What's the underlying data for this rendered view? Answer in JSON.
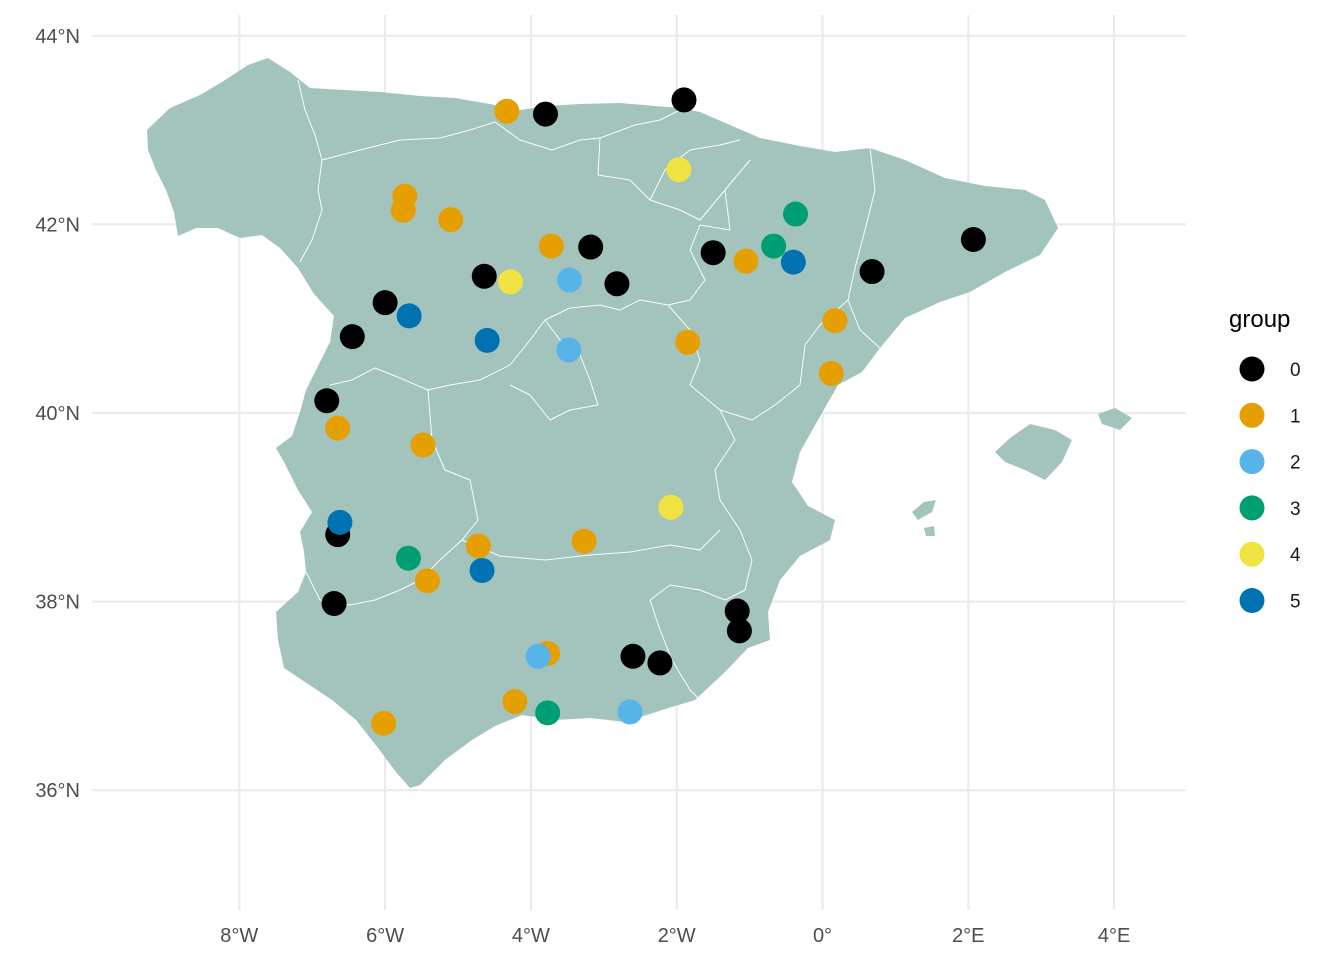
{
  "chart_data": {
    "type": "scatter",
    "title": "",
    "xlabel": "",
    "ylabel": "",
    "xlim": [
      -9.5,
      5
    ],
    "ylim": [
      35,
      44.2
    ],
    "x_ticks": [
      -8,
      -6,
      -4,
      -2,
      0,
      2,
      4
    ],
    "x_tick_labels": [
      "8°W",
      "6°W",
      "4°W",
      "2°W",
      "0°",
      "2°E",
      "4°E"
    ],
    "y_ticks": [
      36,
      38,
      40,
      42,
      44
    ],
    "y_tick_labels": [
      "36°N",
      "38°N",
      "40°N",
      "42°N",
      "44°N"
    ],
    "grid": true,
    "background_map": "Spain (autonomous communities)",
    "legend": {
      "title": "group",
      "position": "right",
      "entries": [
        {
          "label": "0",
          "color": "#000000"
        },
        {
          "label": "1",
          "color": "#E69F00"
        },
        {
          "label": "2",
          "color": "#56B4E9"
        },
        {
          "label": "3",
          "color": "#009E73"
        },
        {
          "label": "4",
          "color": "#F0E442"
        },
        {
          "label": "5",
          "color": "#0072B2"
        }
      ]
    },
    "points": [
      {
        "lon": -1.9,
        "lat": 43.32,
        "group": "0"
      },
      {
        "lon": -3.8,
        "lat": 43.17,
        "group": "0"
      },
      {
        "lon": -3.18,
        "lat": 41.76,
        "group": "0"
      },
      {
        "lon": -4.64,
        "lat": 41.45,
        "group": "0"
      },
      {
        "lon": -2.82,
        "lat": 41.37,
        "group": "0"
      },
      {
        "lon": -6.0,
        "lat": 41.17,
        "group": "0"
      },
      {
        "lon": -6.45,
        "lat": 40.81,
        "group": "0"
      },
      {
        "lon": -1.5,
        "lat": 41.7,
        "group": "0"
      },
      {
        "lon": 0.68,
        "lat": 41.5,
        "group": "0"
      },
      {
        "lon": 2.07,
        "lat": 41.84,
        "group": "0"
      },
      {
        "lon": -6.8,
        "lat": 40.13,
        "group": "0"
      },
      {
        "lon": -6.65,
        "lat": 38.71,
        "group": "0"
      },
      {
        "lon": -6.7,
        "lat": 37.98,
        "group": "0"
      },
      {
        "lon": -1.17,
        "lat": 37.9,
        "group": "0"
      },
      {
        "lon": -1.14,
        "lat": 37.69,
        "group": "0"
      },
      {
        "lon": -2.6,
        "lat": 37.42,
        "group": "0"
      },
      {
        "lon": -2.23,
        "lat": 37.35,
        "group": "0"
      },
      {
        "lon": -4.33,
        "lat": 43.2,
        "group": "1"
      },
      {
        "lon": -5.73,
        "lat": 42.3,
        "group": "1"
      },
      {
        "lon": -5.75,
        "lat": 42.15,
        "group": "1"
      },
      {
        "lon": -5.1,
        "lat": 42.05,
        "group": "1"
      },
      {
        "lon": -3.72,
        "lat": 41.77,
        "group": "1"
      },
      {
        "lon": -1.05,
        "lat": 41.61,
        "group": "1"
      },
      {
        "lon": 0.17,
        "lat": 40.98,
        "group": "1"
      },
      {
        "lon": -1.85,
        "lat": 40.75,
        "group": "1"
      },
      {
        "lon": 0.12,
        "lat": 40.42,
        "group": "1"
      },
      {
        "lon": -6.65,
        "lat": 39.84,
        "group": "1"
      },
      {
        "lon": -5.48,
        "lat": 39.66,
        "group": "1"
      },
      {
        "lon": -4.72,
        "lat": 38.59,
        "group": "1"
      },
      {
        "lon": -3.27,
        "lat": 38.64,
        "group": "1"
      },
      {
        "lon": -5.42,
        "lat": 38.22,
        "group": "1"
      },
      {
        "lon": -3.77,
        "lat": 37.45,
        "group": "1"
      },
      {
        "lon": -4.22,
        "lat": 36.94,
        "group": "1"
      },
      {
        "lon": -6.02,
        "lat": 36.71,
        "group": "1"
      },
      {
        "lon": -3.47,
        "lat": 41.41,
        "group": "2"
      },
      {
        "lon": -3.48,
        "lat": 40.67,
        "group": "2"
      },
      {
        "lon": -3.9,
        "lat": 37.42,
        "group": "2"
      },
      {
        "lon": -2.64,
        "lat": 36.83,
        "group": "2"
      },
      {
        "lon": -0.37,
        "lat": 42.11,
        "group": "3"
      },
      {
        "lon": -0.67,
        "lat": 41.77,
        "group": "3"
      },
      {
        "lon": -5.68,
        "lat": 38.46,
        "group": "3"
      },
      {
        "lon": -3.77,
        "lat": 36.82,
        "group": "3"
      },
      {
        "lon": -1.97,
        "lat": 42.58,
        "group": "4"
      },
      {
        "lon": -4.28,
        "lat": 41.39,
        "group": "4"
      },
      {
        "lon": -2.08,
        "lat": 39.0,
        "group": "4"
      },
      {
        "lon": -5.67,
        "lat": 41.03,
        "group": "5"
      },
      {
        "lon": -4.6,
        "lat": 40.77,
        "group": "5"
      },
      {
        "lon": -0.4,
        "lat": 41.6,
        "group": "5"
      },
      {
        "lon": -6.62,
        "lat": 38.84,
        "group": "5"
      },
      {
        "lon": -4.67,
        "lat": 38.33,
        "group": "5"
      }
    ]
  }
}
